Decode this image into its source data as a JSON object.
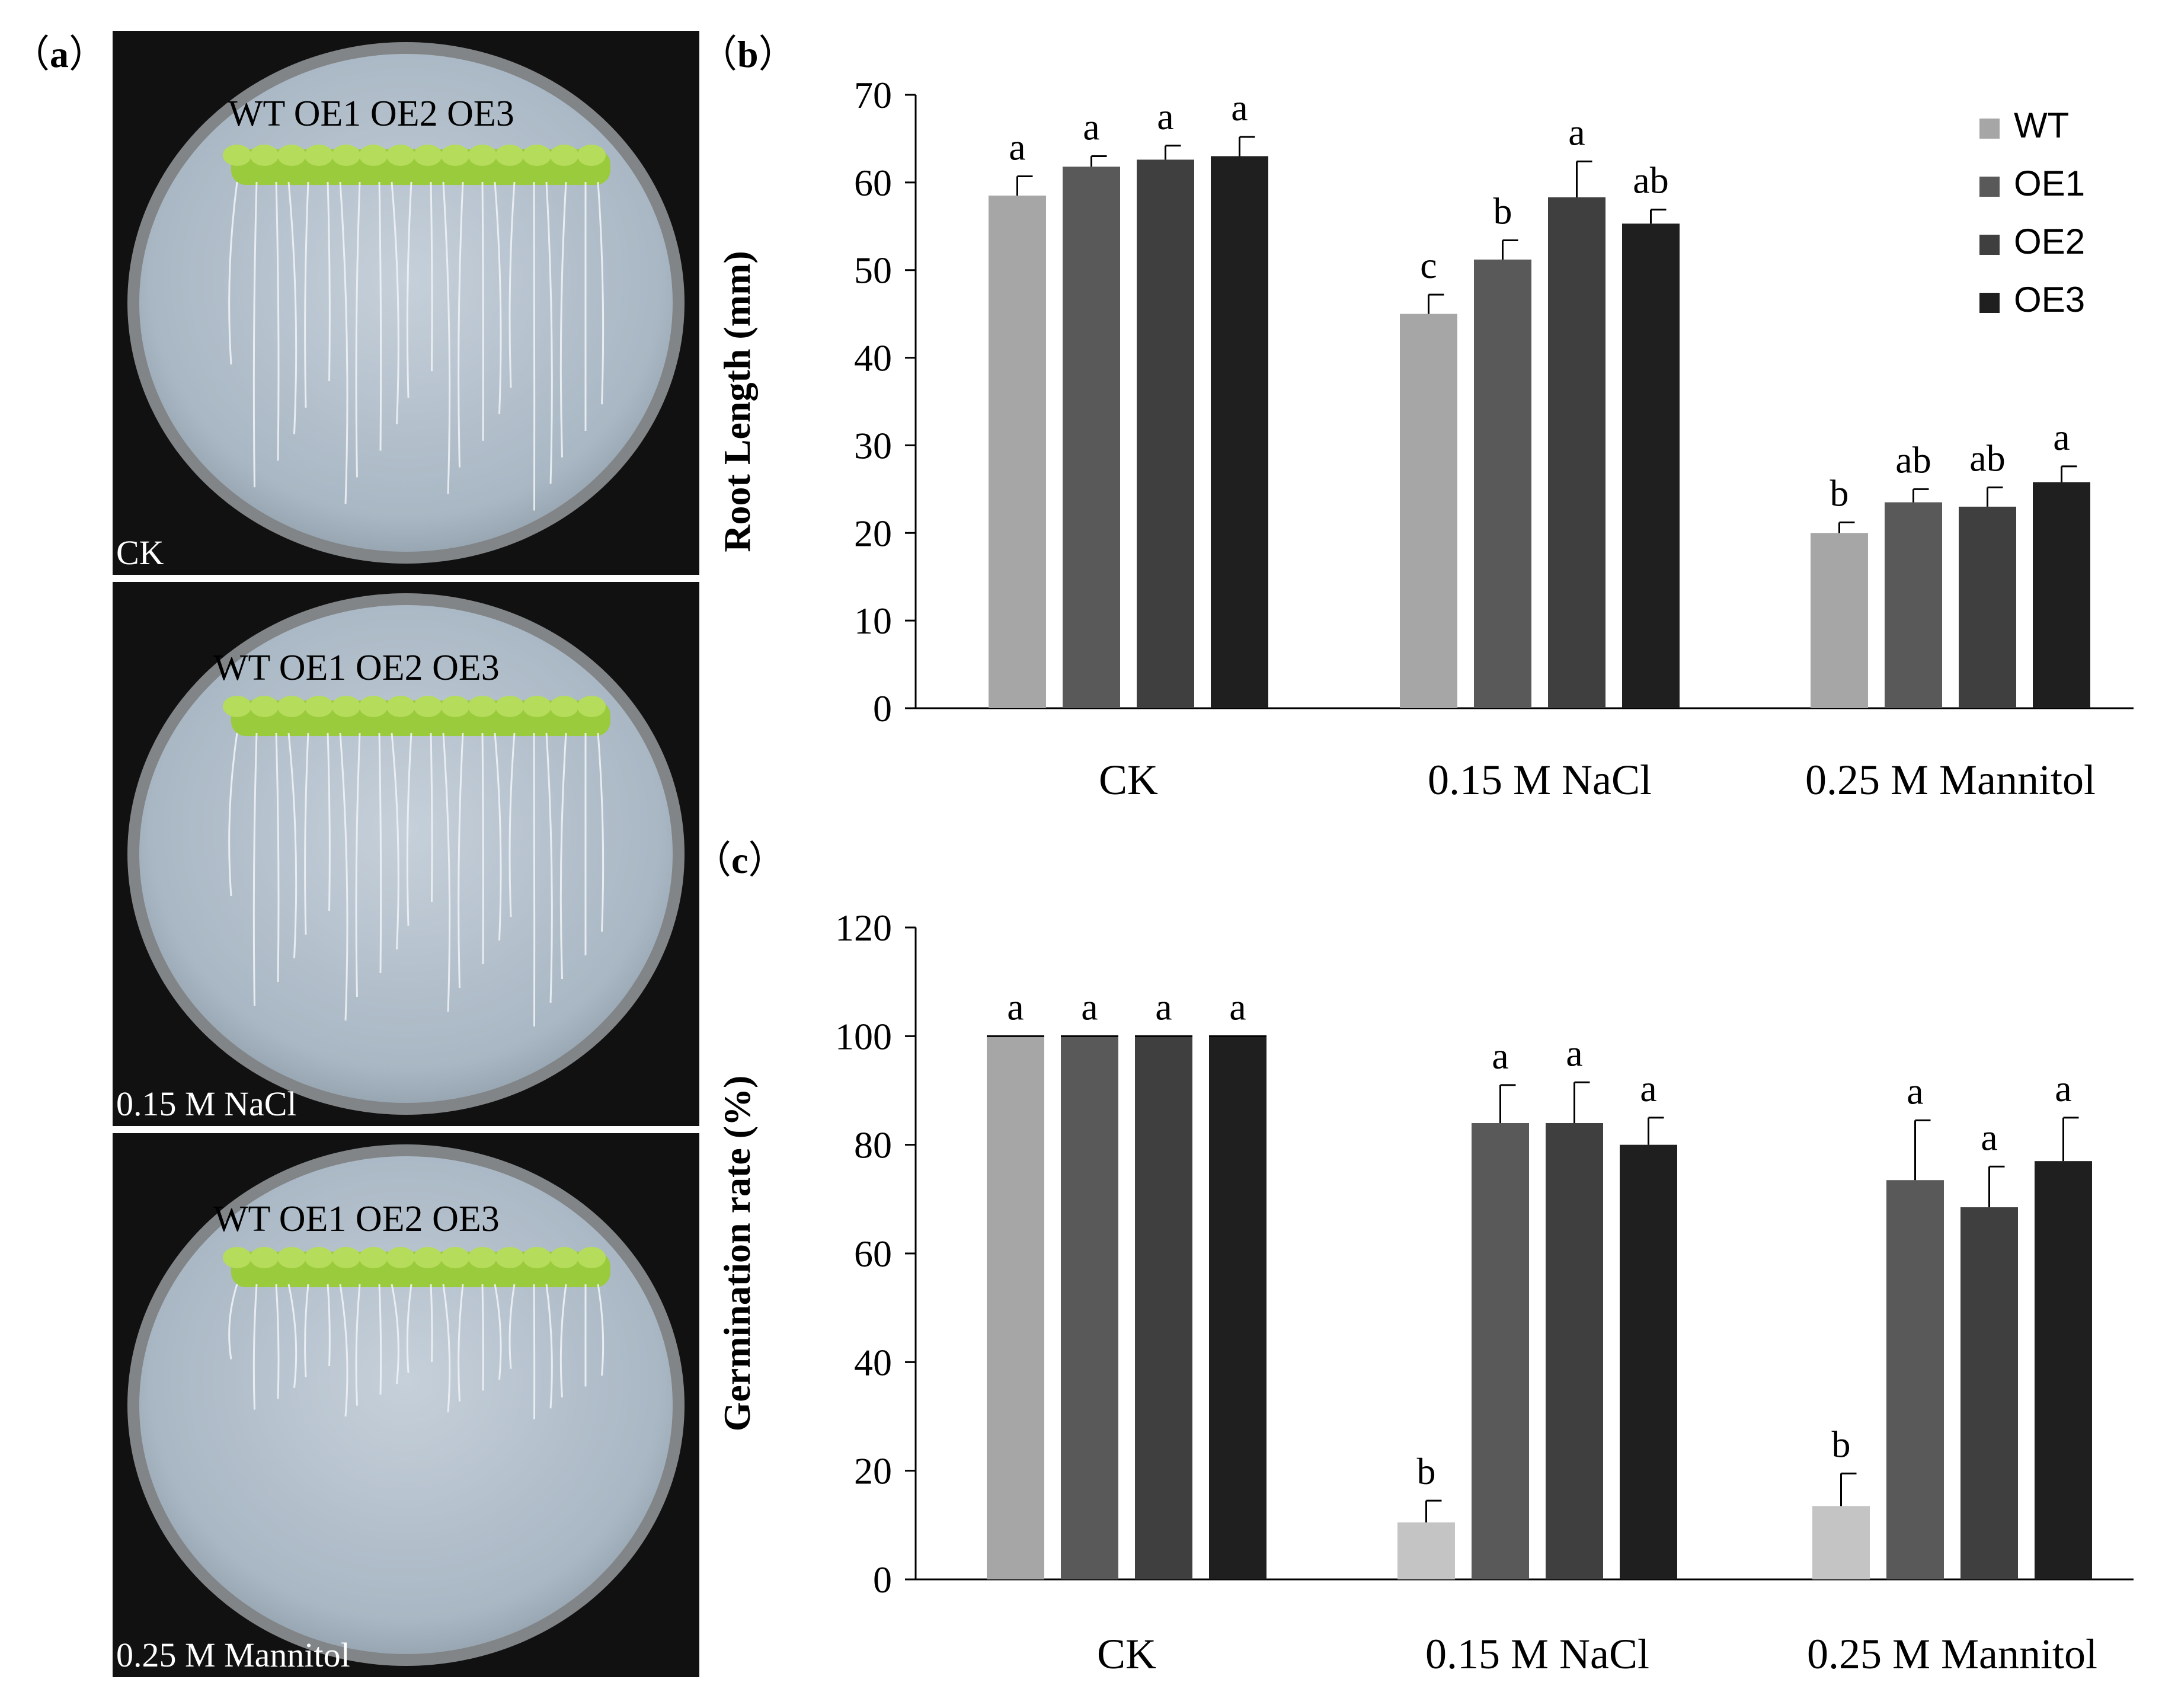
{
  "panels": {
    "a": {
      "label_open": "（",
      "label_letter": "a",
      "label_close": "）"
    },
    "b": {
      "label_open": "（",
      "label_letter": "b",
      "label_close": "）"
    },
    "c": {
      "label_open": "（",
      "label_letter": "c",
      "label_close": "）"
    }
  },
  "photos": [
    {
      "plate_label": "WT  OE1 OE2 OE3",
      "condition": "CK"
    },
    {
      "plate_label": "WT OE1 OE2 OE3",
      "condition": "0.15 M NaCl"
    },
    {
      "plate_label": "WT OE1 OE2 OE3",
      "condition": "0.25 M Mannitol"
    }
  ],
  "colors": {
    "WT": "#a6a6a6",
    "OE1": "#595959",
    "OE2": "#3f3f3f",
    "OE3": "#1f1f1f",
    "WT_c_stress": "#c4c4c4",
    "photo_background": "#111111",
    "plate_agar": "#b7c3cf"
  },
  "chart_data": [
    {
      "type": "bar",
      "ylabel": "Root Length (mm)",
      "ylim": [
        0,
        70
      ],
      "yticks": [
        0,
        10,
        20,
        30,
        40,
        50,
        60,
        70
      ],
      "categories": [
        "CK",
        "0.15 M NaCl",
        "0.25 M Mannitol"
      ],
      "legend_position": "top-right",
      "series": [
        {
          "name": "WT",
          "values": [
            58.5,
            45.0,
            20.0
          ],
          "errors": [
            2.2,
            2.2,
            1.2
          ],
          "letters": [
            "a",
            "c",
            "b"
          ]
        },
        {
          "name": "OE1",
          "values": [
            61.8,
            51.2,
            23.5
          ],
          "errors": [
            1.2,
            2.2,
            1.5
          ],
          "letters": [
            "a",
            "b",
            "ab"
          ]
        },
        {
          "name": "OE2",
          "values": [
            62.6,
            58.3,
            23.0
          ],
          "errors": [
            1.6,
            4.1,
            2.2
          ],
          "letters": [
            "a",
            "a",
            "ab"
          ]
        },
        {
          "name": "OE3",
          "values": [
            63.0,
            55.3,
            25.8
          ],
          "errors": [
            2.2,
            1.6,
            1.8
          ],
          "letters": [
            "a",
            "ab",
            "a"
          ]
        }
      ]
    },
    {
      "type": "bar",
      "ylabel": "Germination rate (%)",
      "ylim": [
        0,
        120
      ],
      "yticks": [
        0,
        20,
        40,
        60,
        80,
        100,
        120
      ],
      "categories": [
        "CK",
        "0.15 M NaCl",
        "0.25 M Mannitol"
      ],
      "series": [
        {
          "name": "WT",
          "values": [
            100,
            10.5,
            13.5
          ],
          "errors": [
            0,
            4.0,
            6.0
          ],
          "letters": [
            "a",
            "b",
            "b"
          ]
        },
        {
          "name": "OE1",
          "values": [
            100,
            84.0,
            73.5
          ],
          "errors": [
            0,
            7.0,
            11.0
          ],
          "letters": [
            "a",
            "a",
            "a"
          ]
        },
        {
          "name": "OE2",
          "values": [
            100,
            84.0,
            68.5
          ],
          "errors": [
            0,
            7.5,
            7.5
          ],
          "letters": [
            "a",
            "a",
            "a"
          ]
        },
        {
          "name": "OE3",
          "values": [
            100,
            80.0,
            77.0
          ],
          "errors": [
            0,
            5.0,
            8.0
          ],
          "letters": [
            "a",
            "a",
            "a"
          ]
        }
      ]
    }
  ]
}
